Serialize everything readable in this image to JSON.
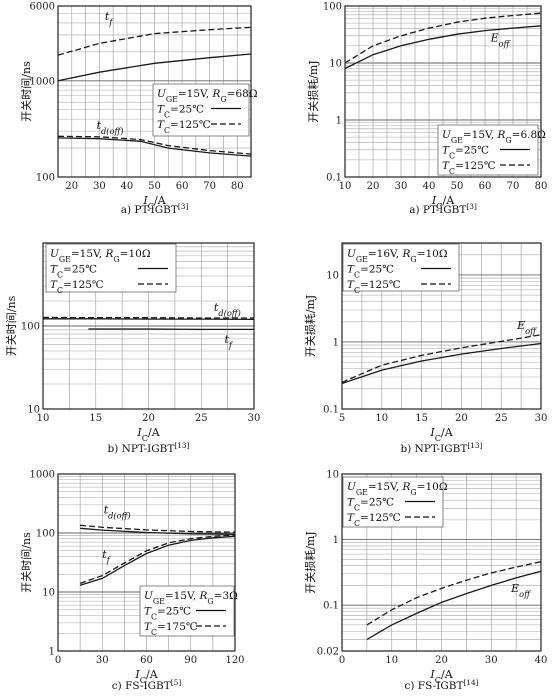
{
  "chart_data": [
    {
      "type": "line",
      "caption": "a) PT-IGBT[3]",
      "xlabel": "I_C/A",
      "ylabel": "开关时间/ns",
      "xlim": [
        15,
        85
      ],
      "ylim": [
        100,
        6000
      ],
      "yscale": "log",
      "xticks": [
        20,
        30,
        40,
        50,
        60,
        70,
        80
      ],
      "yticks": [
        100,
        1000,
        6000
      ],
      "grid": true,
      "legend": {
        "placement": "middle-right",
        "lines": [
          "U_GE=15V, R_G=68Ω",
          "T_C=25℃",
          "T_C=125℃"
        ]
      },
      "series": [
        {
          "name": "t_f",
          "group": "t_f",
          "temp": "25℃",
          "x": [
            15,
            30,
            50,
            70,
            85
          ],
          "y": [
            1000,
            1230,
            1520,
            1740,
            1900
          ]
        },
        {
          "name": "t_f",
          "group": "t_f",
          "temp": "125℃",
          "x": [
            15,
            30,
            50,
            70,
            85
          ],
          "y": [
            1850,
            2450,
            3100,
            3400,
            3600
          ]
        },
        {
          "name": "t_d(off)",
          "group": "t_d(off)",
          "temp": "25℃",
          "x": [
            15,
            30,
            45,
            55,
            70,
            85
          ],
          "y": [
            255,
            250,
            235,
            200,
            178,
            165
          ]
        },
        {
          "name": "t_d(off)",
          "group": "t_d(off)",
          "temp": "125℃",
          "x": [
            15,
            30,
            45,
            55,
            70,
            85
          ],
          "y": [
            265,
            262,
            245,
            212,
            188,
            173
          ]
        }
      ],
      "annotations": [
        {
          "text": "t_f",
          "x": 32,
          "y": 4300
        },
        {
          "text": "t_d(off)",
          "x": 29,
          "y": 315
        }
      ]
    },
    {
      "type": "line",
      "caption": "a) PT-IGBT[3]",
      "xlabel": "I_C/A",
      "ylabel": "开关损耗/mJ",
      "xlim": [
        10,
        80
      ],
      "ylim": [
        0.1,
        100
      ],
      "yscale": "log",
      "xticks": [
        10,
        20,
        30,
        40,
        50,
        60,
        70,
        80
      ],
      "yticks": [
        0.1,
        1,
        10,
        100
      ],
      "grid": true,
      "legend": {
        "placement": "bottom-right",
        "lines": [
          "U_GE=15V, R_G=6.8Ω",
          "T_C=25℃",
          "T_C=125℃"
        ]
      },
      "series": [
        {
          "name": "E_off",
          "temp": "25℃",
          "x": [
            10,
            20,
            30,
            40,
            50,
            60,
            70,
            80
          ],
          "y": [
            8,
            14,
            20,
            26,
            32,
            37,
            41,
            45
          ]
        },
        {
          "name": "E_off",
          "temp": "125℃",
          "x": [
            10,
            20,
            30,
            40,
            50,
            60,
            70,
            80
          ],
          "y": [
            10,
            20,
            30,
            41,
            52,
            61,
            68,
            75
          ]
        }
      ],
      "annotations": [
        {
          "text": "E_off",
          "x": 62,
          "y": 24
        }
      ]
    },
    {
      "type": "line",
      "caption": "b) NPT-IGBT[13]",
      "xlabel": "I_C/A",
      "ylabel": "开关时间/ns",
      "xlim": [
        10,
        30
      ],
      "ylim": [
        10,
        1000
      ],
      "yscale": "log",
      "xticks": [
        10,
        15,
        20,
        25,
        30
      ],
      "yticks": [
        10,
        100
      ],
      "grid": true,
      "legend": {
        "placement": "top-left",
        "lines": [
          "U_GE=15V, R_G=10Ω",
          "T_C=25℃",
          "T_C=125℃"
        ]
      },
      "series": [
        {
          "name": "t_d(off)",
          "temp": "25℃",
          "x": [
            10,
            15,
            20,
            25,
            30
          ],
          "y": [
            122,
            122,
            121,
            121,
            120
          ]
        },
        {
          "name": "t_d(off)",
          "temp": "125℃",
          "x": [
            10,
            15,
            20,
            25,
            30
          ],
          "y": [
            127,
            126,
            126,
            125,
            125
          ]
        },
        {
          "name": "t_f",
          "temp": "25℃",
          "x": [
            14.3,
            20,
            25,
            30
          ],
          "y": [
            92,
            92,
            91,
            91
          ]
        }
      ],
      "annotations": [
        {
          "text": "t_d(off)",
          "x": 26.2,
          "y": 152
        },
        {
          "text": "t_f",
          "x": 27.2,
          "y": 62
        }
      ]
    },
    {
      "type": "line",
      "caption": "b) NPT-IGBT[13]",
      "xlabel": "I_C/A",
      "ylabel": "开关损耗/mJ",
      "xlim": [
        5,
        30
      ],
      "ylim": [
        0.1,
        30
      ],
      "yscale": "log",
      "xticks": [
        5,
        10,
        15,
        20,
        25,
        30
      ],
      "yticks": [
        0.1,
        1,
        10
      ],
      "grid": true,
      "legend": {
        "placement": "top-left",
        "lines": [
          "U_GE=16V, R_G=10Ω",
          "T_C=25℃",
          "T_C=125℃"
        ]
      },
      "series": [
        {
          "name": "E_off",
          "temp": "25℃",
          "x": [
            5,
            10,
            15,
            20,
            25,
            30
          ],
          "y": [
            0.24,
            0.38,
            0.52,
            0.66,
            0.8,
            0.95
          ]
        },
        {
          "name": "E_off",
          "temp": "125℃",
          "x": [
            5,
            10,
            15,
            20,
            25,
            30
          ],
          "y": [
            0.25,
            0.45,
            0.63,
            0.82,
            1.02,
            1.28
          ]
        }
      ],
      "annotations": [
        {
          "text": "E_off",
          "x": 27,
          "y": 1.55
        }
      ]
    },
    {
      "type": "line",
      "caption": "c) FS-IGBT[5]",
      "xlabel": "I_C/A",
      "ylabel": "开关时间/ns",
      "xlim": [
        0,
        120
      ],
      "ylim": [
        1,
        1000
      ],
      "yscale": "log",
      "xticks": [
        0,
        30,
        60,
        90,
        120
      ],
      "yticks": [
        1,
        10,
        100,
        1000
      ],
      "grid": true,
      "legend": {
        "placement": "bottom-right",
        "lines": [
          "U_GE=15V, R_G=3Ω",
          "T_C=25℃",
          "T_C=175℃"
        ]
      },
      "series": [
        {
          "name": "t_d(off)",
          "temp": "25℃",
          "x": [
            15,
            30,
            60,
            90,
            120
          ],
          "y": [
            120,
            112,
            102,
            97,
            95
          ]
        },
        {
          "name": "t_d(off)",
          "temp": "175℃",
          "x": [
            15,
            30,
            60,
            90,
            120
          ],
          "y": [
            135,
            125,
            113,
            106,
            103
          ]
        },
        {
          "name": "t_f",
          "temp": "25℃",
          "x": [
            15,
            30,
            45,
            60,
            75,
            90,
            105,
            120
          ],
          "y": [
            13,
            17,
            28,
            45,
            62,
            75,
            83,
            88
          ]
        },
        {
          "name": "t_f",
          "temp": "175℃",
          "x": [
            15,
            30,
            45,
            60,
            75,
            90,
            105,
            120
          ],
          "y": [
            14,
            19,
            31,
            50,
            68,
            80,
            88,
            93
          ]
        }
      ],
      "annotations": [
        {
          "text": "t_d(off)",
          "x": 31,
          "y": 215
        },
        {
          "text": "t_f",
          "x": 30,
          "y": 38
        }
      ]
    },
    {
      "type": "line",
      "caption": "c) FS-IGBT[14]",
      "xlabel": "I_C/A",
      "ylabel": "开关损耗/mJ",
      "xlim": [
        0,
        40
      ],
      "ylim": [
        0.02,
        10
      ],
      "yscale": "log",
      "xticks": [
        0,
        10,
        20,
        30,
        40
      ],
      "yticks": [
        0.02,
        0.1,
        1,
        10
      ],
      "grid": true,
      "legend": {
        "placement": "top-left",
        "lines": [
          "U_GE=15V, R_G=10Ω",
          "T_C=25℃",
          "T_C=125℃"
        ]
      },
      "series": [
        {
          "name": "E_off",
          "temp": "25℃",
          "x": [
            5,
            10,
            15,
            20,
            25,
            30,
            35,
            40
          ],
          "y": [
            0.03,
            0.05,
            0.075,
            0.11,
            0.15,
            0.2,
            0.26,
            0.33
          ]
        },
        {
          "name": "E_off",
          "temp": "125℃",
          "x": [
            5,
            10,
            15,
            20,
            25,
            30,
            35,
            40
          ],
          "y": [
            0.05,
            0.085,
            0.13,
            0.18,
            0.24,
            0.31,
            0.38,
            0.46
          ]
        }
      ],
      "annotations": [
        {
          "text": "E_off",
          "x": 34,
          "y": 0.16
        }
      ]
    }
  ]
}
